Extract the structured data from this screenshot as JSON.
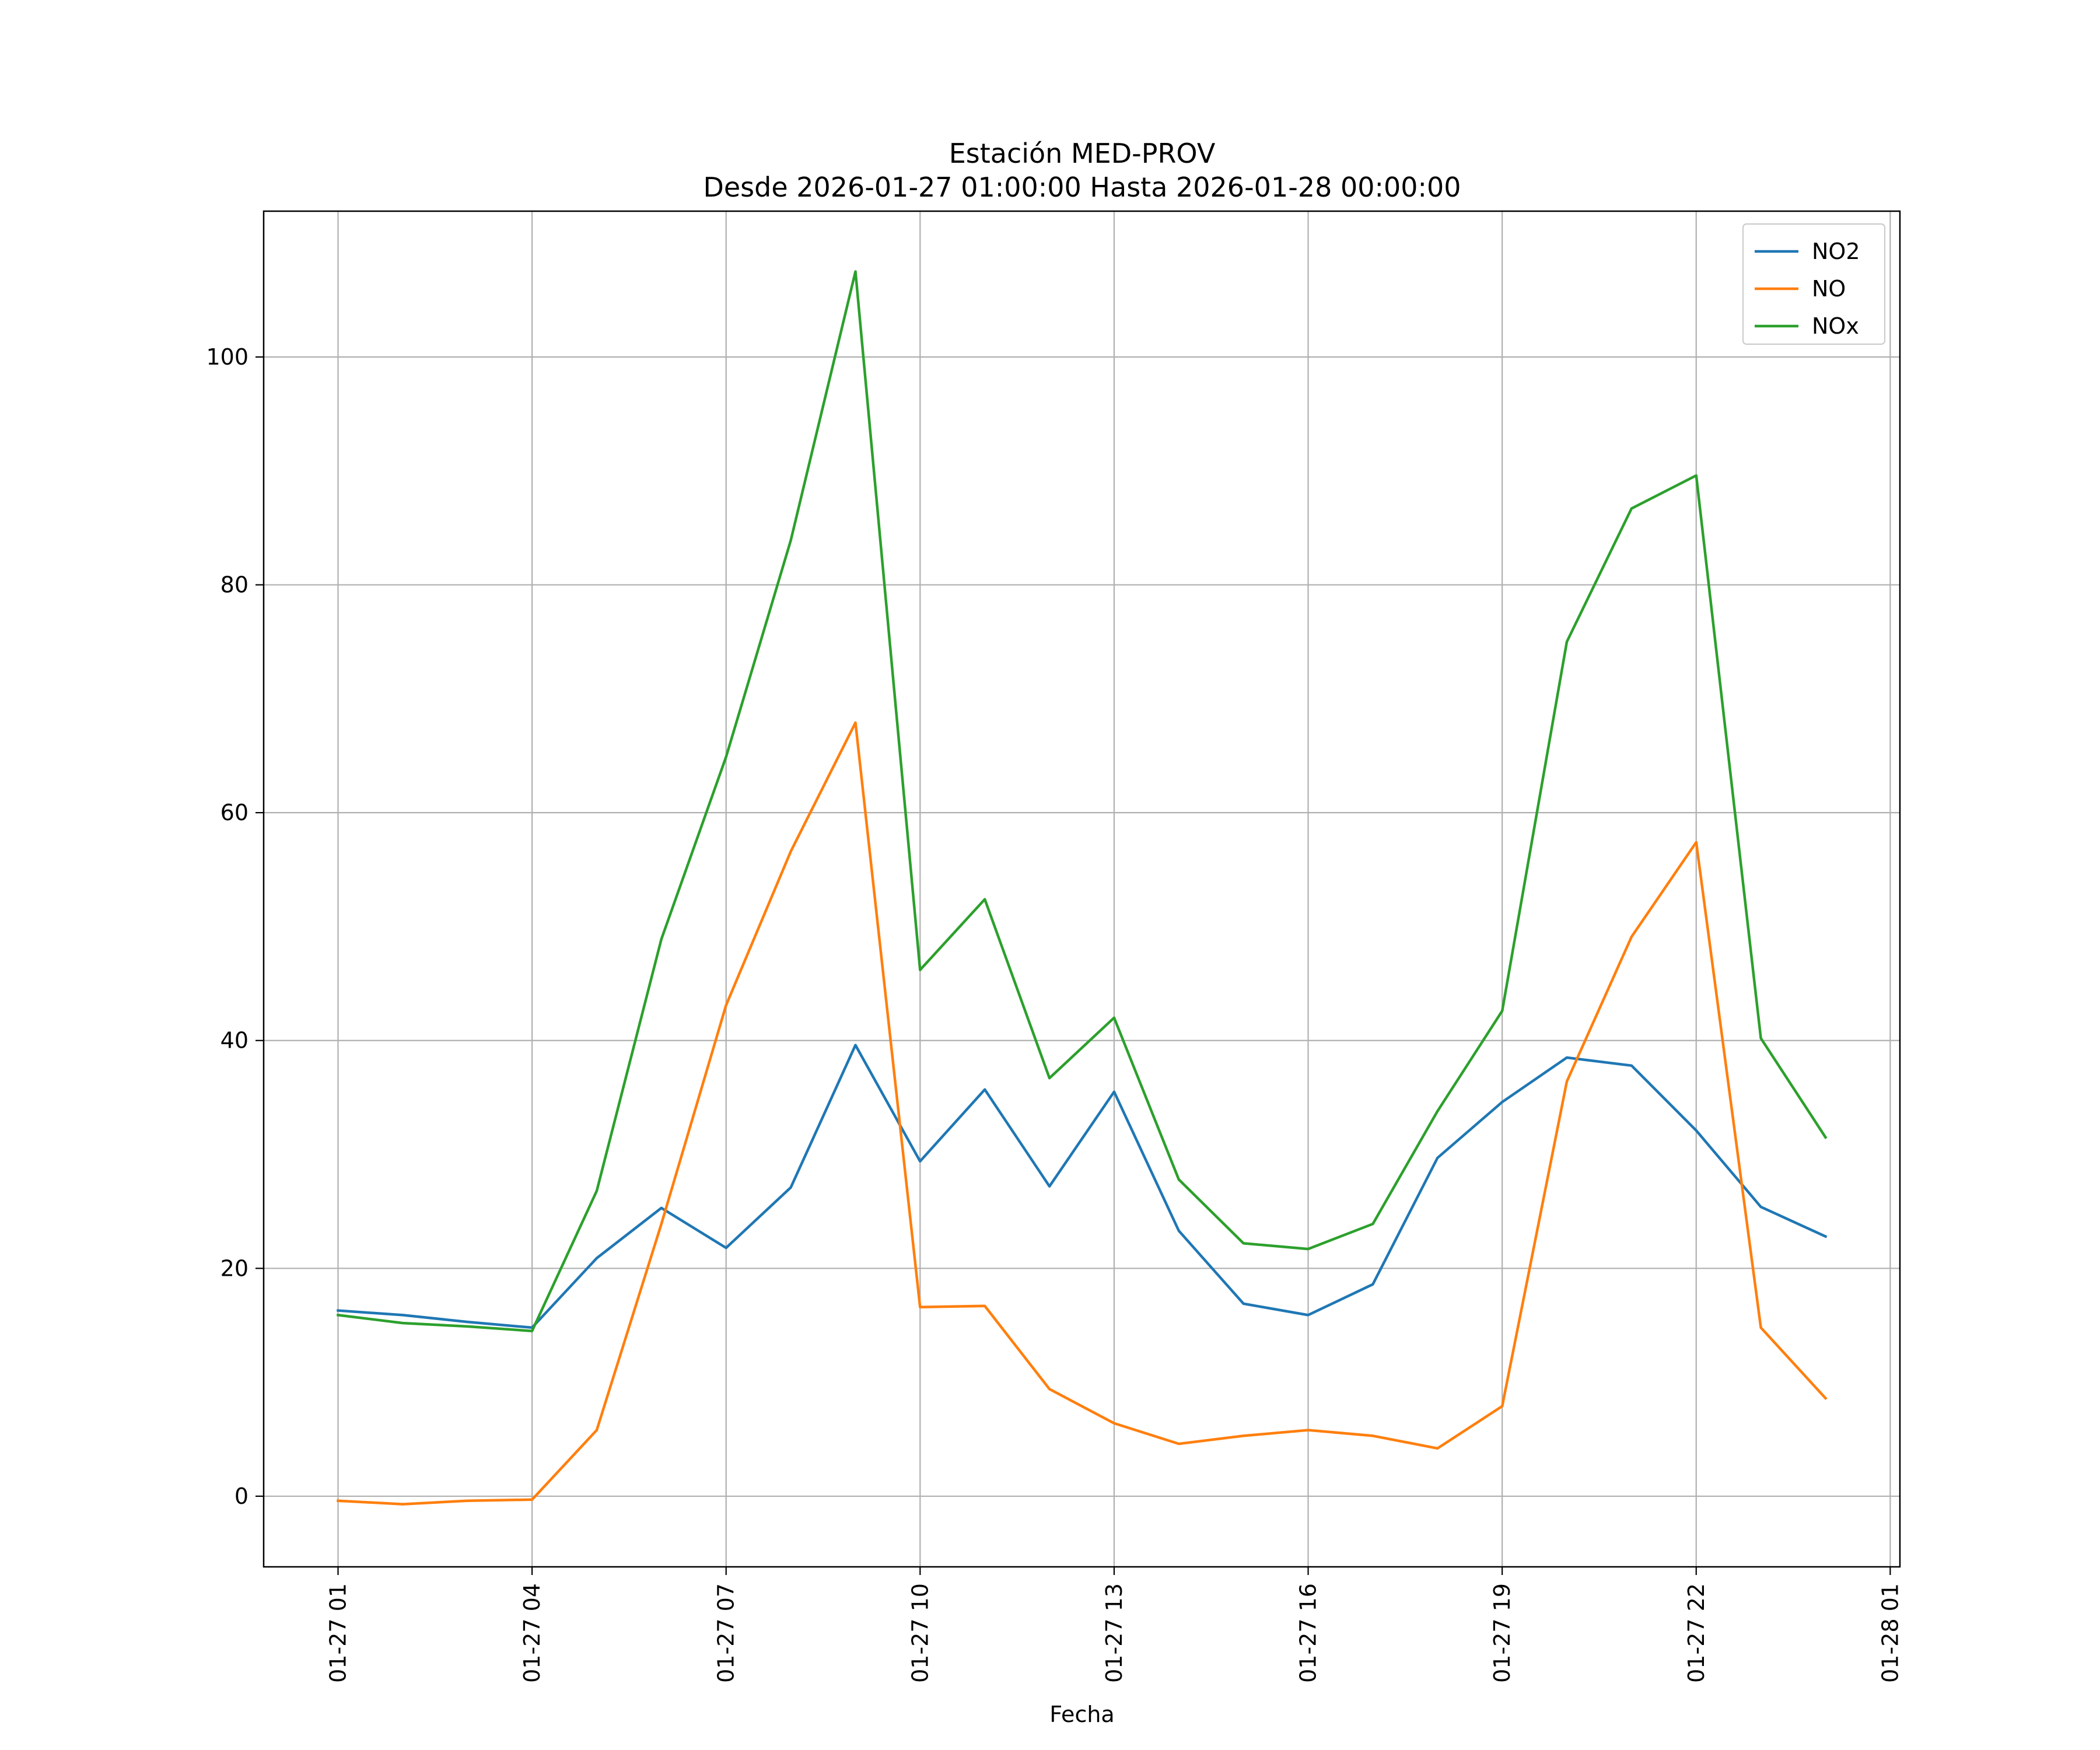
{
  "chart_data": {
    "type": "line",
    "title_line1": "Estación MED-PROV",
    "title_line2": "Desde 2026-01-27 01:00:00 Hasta 2026-01-28 00:00:00",
    "xlabel": "Fecha",
    "ylabel": "",
    "x": [
      "01-27 01",
      "01-27 02",
      "01-27 03",
      "01-27 04",
      "01-27 05",
      "01-27 06",
      "01-27 07",
      "01-27 08",
      "01-27 09",
      "01-27 10",
      "01-27 11",
      "01-27 12",
      "01-27 13",
      "01-27 14",
      "01-27 15",
      "01-27 16",
      "01-27 17",
      "01-27 18",
      "01-27 19",
      "01-27 20",
      "01-27 21",
      "01-27 22",
      "01-27 23",
      "01-28 00"
    ],
    "x_ticks": [
      "01-27 01",
      "01-27 04",
      "01-27 07",
      "01-27 10",
      "01-27 13",
      "01-27 16",
      "01-27 19",
      "01-27 22",
      "01-28 01"
    ],
    "x_range": [
      "01-27 00",
      "01-28 01"
    ],
    "y_ticks": [
      0,
      20,
      40,
      60,
      80,
      100
    ],
    "ylim": [
      -6.2,
      112.8
    ],
    "grid": true,
    "legend_position": "top-right",
    "series": [
      {
        "name": "NO2",
        "color": "#1f77b4",
        "values": [
          16.3,
          15.9,
          15.3,
          14.8,
          20.9,
          25.3,
          21.8,
          27.1,
          39.6,
          29.4,
          35.7,
          27.2,
          35.5,
          23.3,
          16.9,
          15.9,
          18.6,
          29.7,
          34.6,
          38.5,
          37.8,
          32.1,
          25.4,
          22.8
        ]
      },
      {
        "name": "NO",
        "color": "#ff7f0e",
        "values": [
          -0.4,
          -0.7,
          -0.4,
          -0.3,
          5.8,
          23.9,
          43.1,
          56.6,
          67.9,
          16.6,
          16.7,
          9.4,
          6.4,
          4.6,
          5.3,
          5.8,
          5.3,
          4.2,
          7.9,
          36.4,
          49.1,
          57.4,
          14.8,
          8.6
        ]
      },
      {
        "name": "NOx",
        "color": "#2ca02c",
        "values": [
          15.9,
          15.2,
          14.9,
          14.5,
          26.8,
          48.9,
          64.9,
          83.9,
          107.5,
          46.2,
          52.4,
          36.7,
          42.0,
          27.8,
          22.2,
          21.7,
          23.9,
          33.8,
          42.6,
          75.0,
          86.7,
          89.6,
          40.2,
          31.5
        ]
      }
    ]
  }
}
